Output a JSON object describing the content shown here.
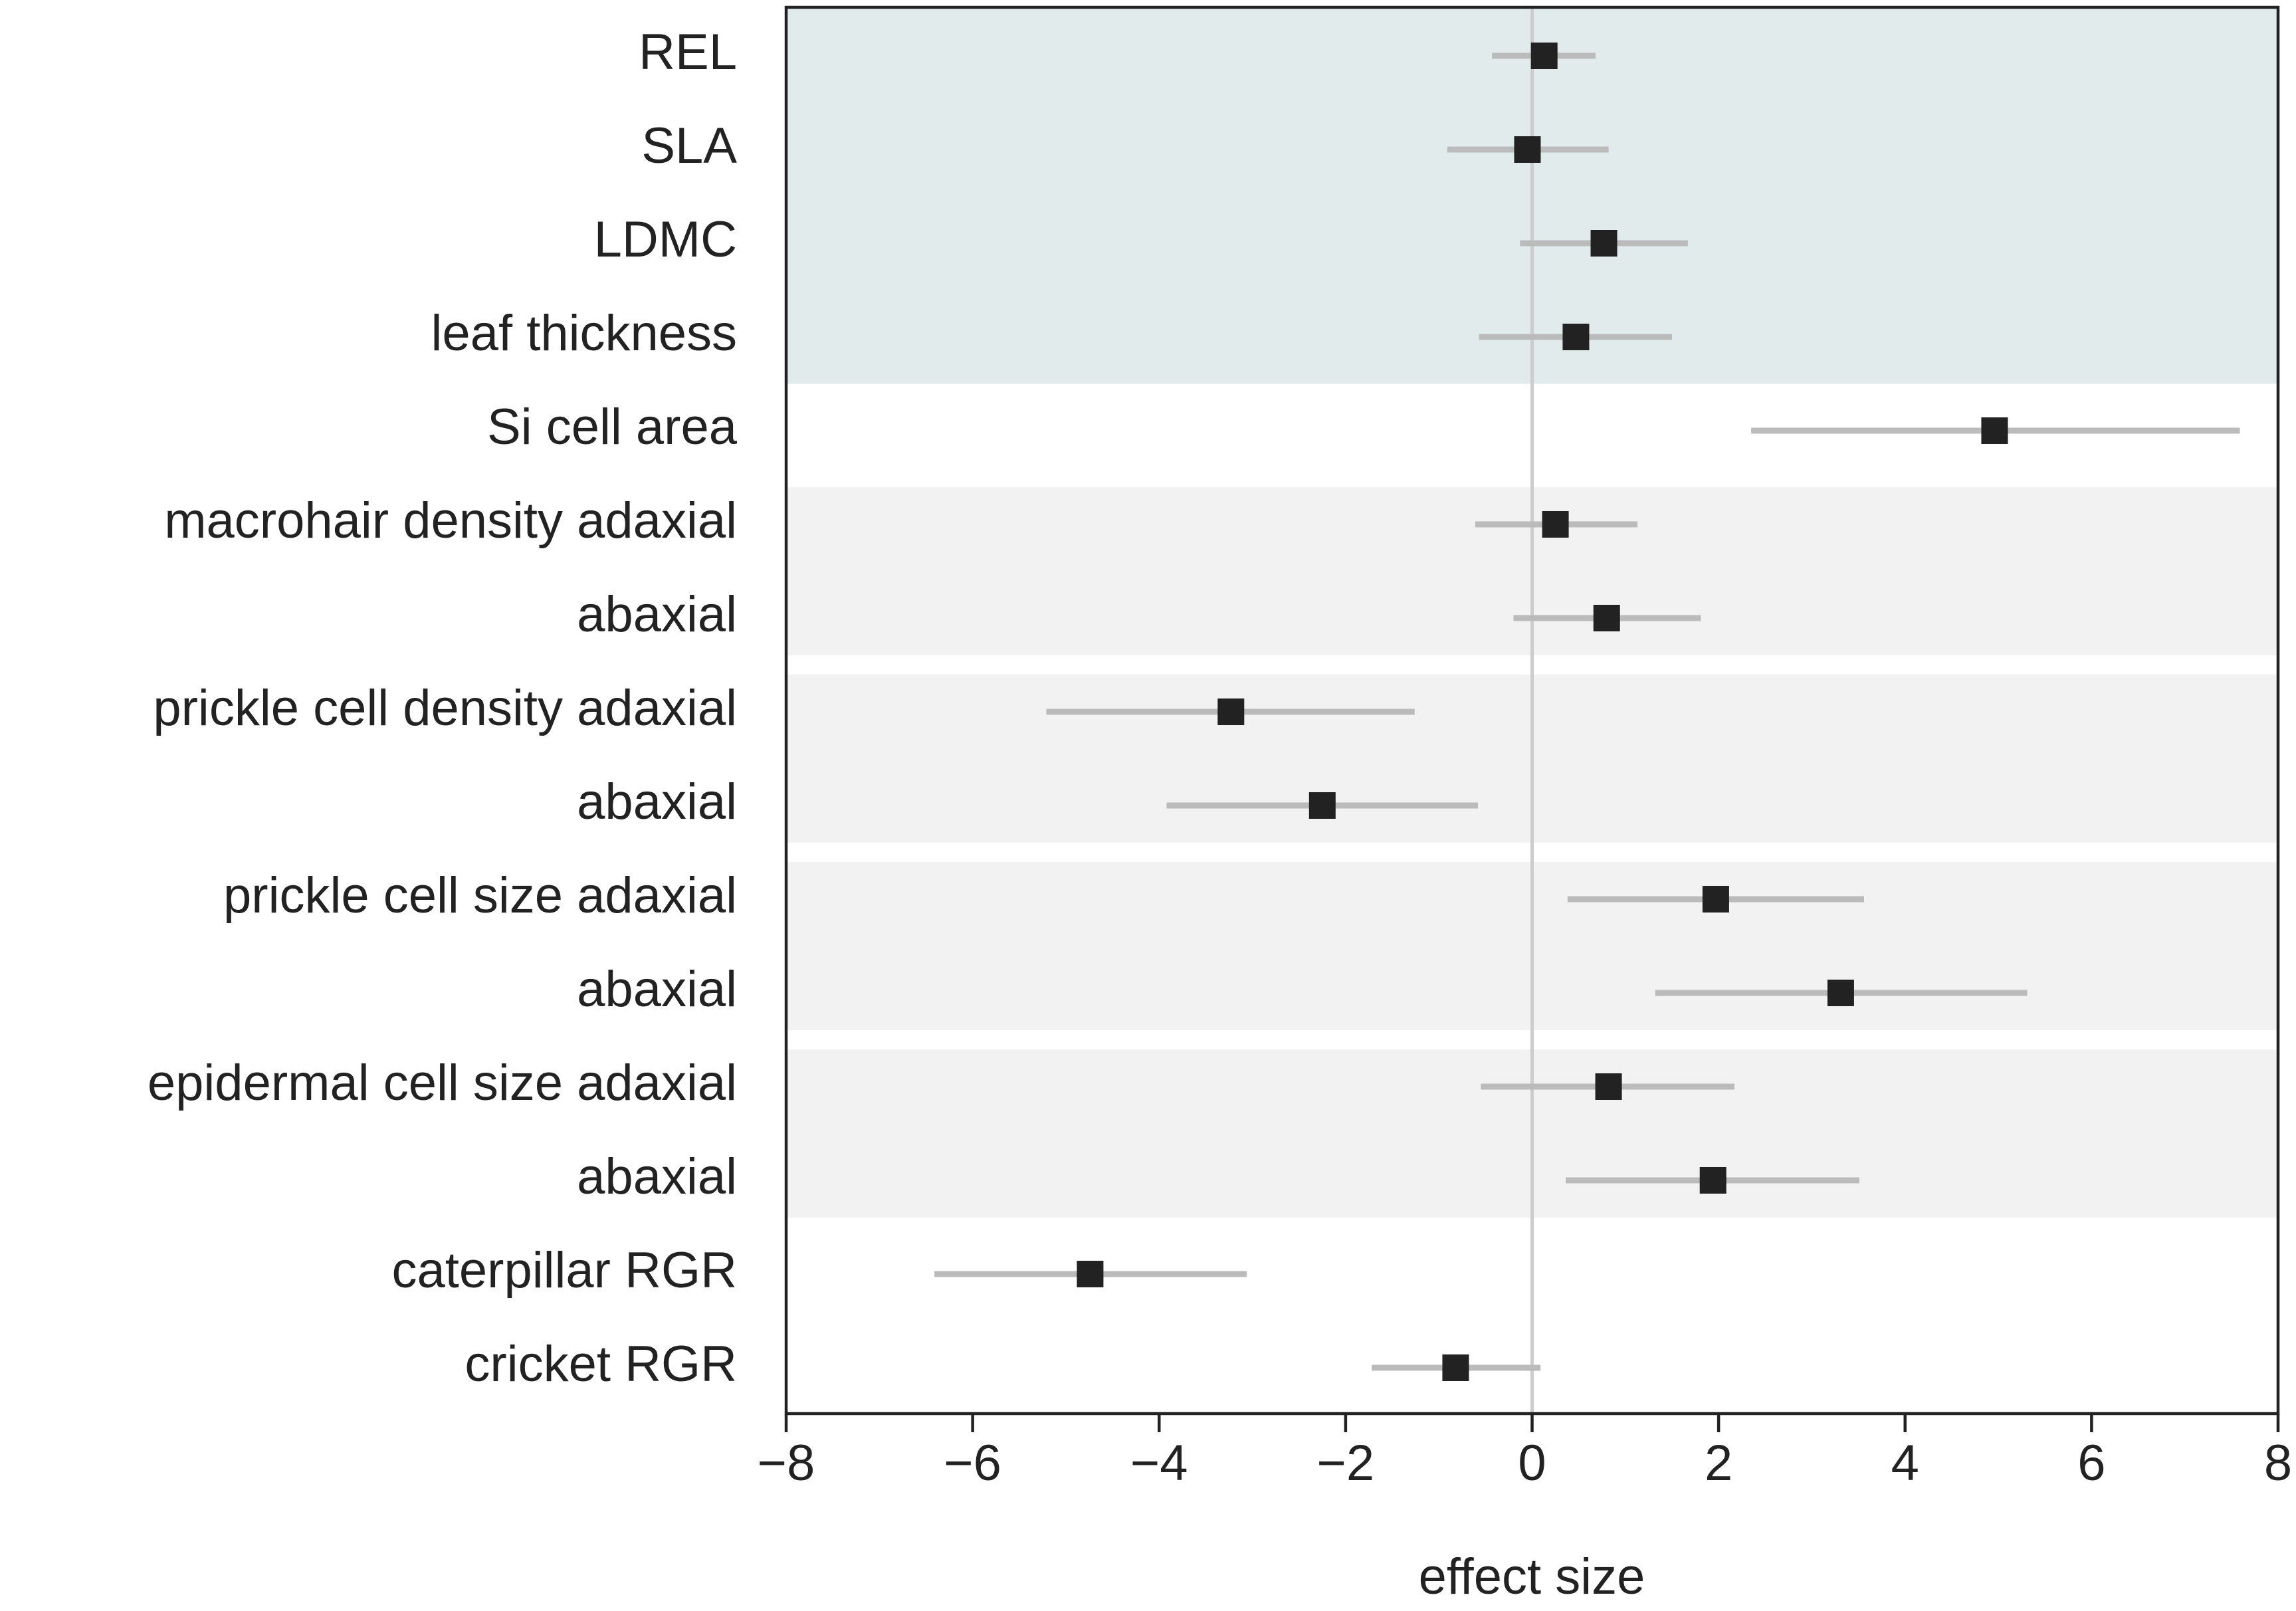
{
  "chart_data": {
    "type": "forest",
    "xlabel": "effect size",
    "categories": [
      "REL",
      "SLA",
      "LDMC",
      "leaf thickness",
      "Si cell area",
      "macrohair density adaxial",
      "abaxial",
      "prickle cell density adaxial",
      "abaxial",
      "prickle cell size adaxial",
      "abaxial",
      "epidermal cell size adaxial",
      "abaxial",
      "caterpillar RGR",
      "cricket RGR"
    ],
    "series": [
      {
        "color": "#222222",
        "ci_color": "#bbbbbb",
        "values": [
          0.13,
          -0.05,
          0.77,
          0.47,
          4.96,
          0.25,
          0.8,
          -3.23,
          -2.25,
          1.97,
          3.31,
          0.82,
          1.94,
          -4.74,
          -0.82
        ],
        "lower": [
          -0.43,
          -0.91,
          -0.13,
          -0.57,
          2.35,
          -0.61,
          -0.2,
          -5.21,
          -3.92,
          0.38,
          1.32,
          -0.55,
          0.36,
          -6.41,
          -1.72
        ],
        "upper": [
          0.68,
          0.82,
          1.67,
          1.5,
          7.59,
          1.13,
          1.81,
          -1.26,
          -0.58,
          3.56,
          5.31,
          2.17,
          3.51,
          -3.06,
          0.09
        ]
      }
    ],
    "xlim": [
      -8,
      8
    ],
    "xticks": [
      {
        "value": -8,
        "label": "−8"
      },
      {
        "value": -6,
        "label": "−6"
      },
      {
        "value": -4,
        "label": "−4"
      },
      {
        "value": -2,
        "label": "−2"
      },
      0,
      2,
      4,
      6,
      8
    ]
  }
}
